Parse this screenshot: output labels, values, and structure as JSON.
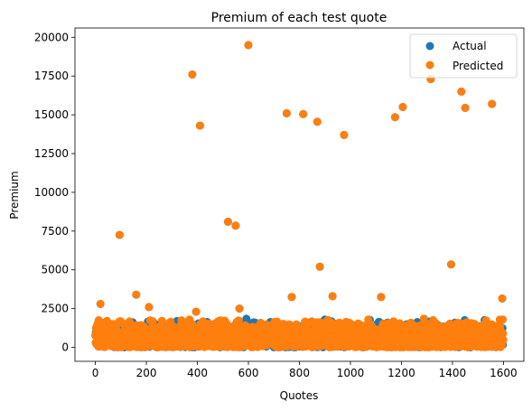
{
  "chart_data": {
    "type": "scatter",
    "title": "Premium of each test quote",
    "xlabel": "Quotes",
    "ylabel": "Premium",
    "xlim": [
      -80,
      1680
    ],
    "ylim": [
      -900,
      20600
    ],
    "xticks": [
      0,
      200,
      400,
      600,
      800,
      1000,
      1200,
      1400,
      1600
    ],
    "yticks": [
      0,
      2500,
      5000,
      7500,
      10000,
      12500,
      15000,
      17500,
      20000
    ],
    "grid": false,
    "legend_position": "top-right",
    "series": [
      {
        "name": "Actual",
        "color": "#1f77b4"
      },
      {
        "name": "Predicted",
        "color": "#ff7f0e"
      }
    ],
    "n_points": 1600,
    "bulk_range": [
      0,
      1900
    ],
    "outliers": [
      [
        20,
        2800
      ],
      [
        95,
        7250
      ],
      [
        160,
        3400
      ],
      [
        210,
        2600
      ],
      [
        380,
        17600
      ],
      [
        395,
        2300
      ],
      [
        410,
        14300
      ],
      [
        520,
        8100
      ],
      [
        550,
        7850
      ],
      [
        565,
        2500
      ],
      [
        600,
        19500
      ],
      [
        750,
        15100
      ],
      [
        770,
        3250
      ],
      [
        815,
        15050
      ],
      [
        870,
        14550
      ],
      [
        880,
        5200
      ],
      [
        930,
        3300
      ],
      [
        975,
        13700
      ],
      [
        1120,
        3250
      ],
      [
        1175,
        14850
      ],
      [
        1205,
        15500
      ],
      [
        1315,
        17300
      ],
      [
        1395,
        5350
      ],
      [
        1435,
        16500
      ],
      [
        1450,
        15450
      ],
      [
        1555,
        15700
      ],
      [
        1595,
        3150
      ]
    ]
  }
}
